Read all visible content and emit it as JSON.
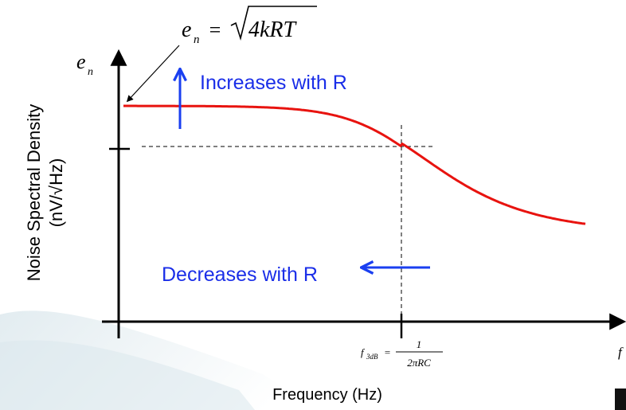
{
  "formula": {
    "lhs": "e",
    "lhs_sub": "n",
    "eq": "=",
    "radicand": "4kRT"
  },
  "y_axis_symbol": {
    "base": "e",
    "sub": "n"
  },
  "y_axis_label": {
    "line1": "Noise Spectral Density",
    "line2": "(nV/√Hz)"
  },
  "x_axis_label": "Frequency (Hz)",
  "x_axis_end_symbol": "f",
  "corner_formula": {
    "f": "f",
    "sub": "3dB",
    "eq": "=",
    "numerator": "1",
    "denominator": "2πRC"
  },
  "annotations": {
    "increase": "Increases with R",
    "decrease": "Decreases with R"
  },
  "colors": {
    "curve": "#e8130f",
    "arrows": "#1a3ff0",
    "axis": "#000000",
    "label_blue": "#1a2ee8",
    "swoosh": "#c9dde6"
  },
  "chart_data": {
    "type": "line",
    "series": [
      {
        "name": "",
        "description": "flat at e_n then rolling off after f_3dB"
      }
    ],
    "x_scale": "log",
    "xlim": [
      0.02,
      18
    ],
    "ylim": [
      0,
      1.2
    ],
    "x_ticks": [
      1
    ],
    "y_ticks": [
      0.707
    ]
  }
}
